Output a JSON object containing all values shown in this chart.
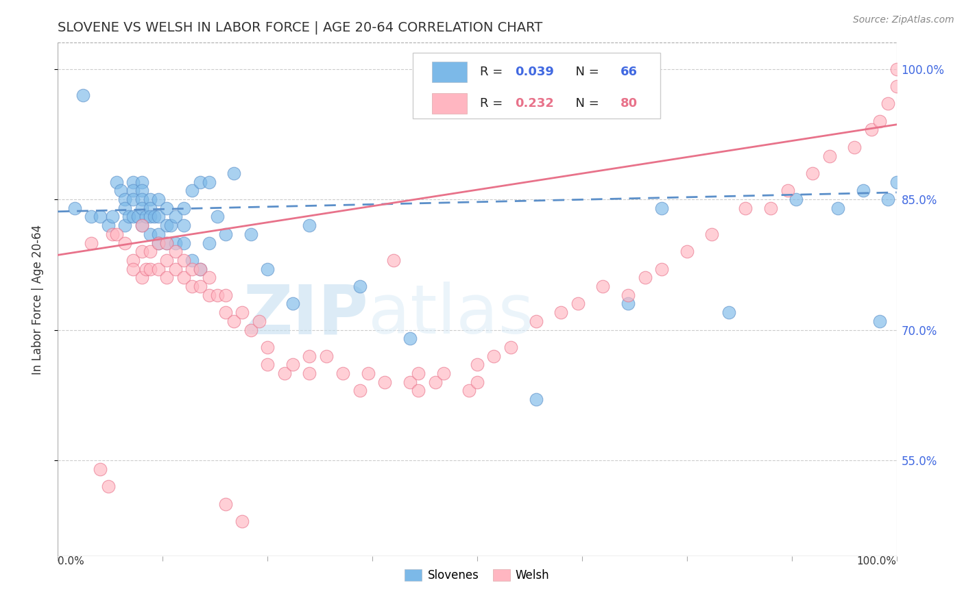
{
  "title": "SLOVENE VS WELSH IN LABOR FORCE | AGE 20-64 CORRELATION CHART",
  "source_text": "Source: ZipAtlas.com",
  "ylabel": "In Labor Force | Age 20-64",
  "xlim": [
    0.0,
    1.0
  ],
  "ylim": [
    0.44,
    1.03
  ],
  "yticks": [
    0.55,
    0.7,
    0.85,
    1.0
  ],
  "ytick_labels": [
    "55.0%",
    "70.0%",
    "85.0%",
    "100.0%"
  ],
  "color_slovene": "#7CB9E8",
  "color_welsh": "#FFB6C1",
  "color_slovene_line": "#5B8FC9",
  "color_welsh_line": "#E8728A",
  "watermark_zip": "ZIP",
  "watermark_atlas": "atlas",
  "background_color": "#ffffff",
  "slovene_line_start_y": 0.836,
  "slovene_line_end_y": 0.858,
  "welsh_line_start_y": 0.786,
  "welsh_line_end_y": 0.936,
  "xtick_positions": [
    0.0,
    0.125,
    0.25,
    0.375,
    0.5,
    0.625,
    0.75,
    0.875,
    1.0
  ],
  "slovene_x": [
    0.02,
    0.03,
    0.04,
    0.05,
    0.06,
    0.065,
    0.07,
    0.075,
    0.08,
    0.08,
    0.08,
    0.085,
    0.09,
    0.09,
    0.09,
    0.09,
    0.095,
    0.1,
    0.1,
    0.1,
    0.1,
    0.1,
    0.105,
    0.11,
    0.11,
    0.11,
    0.11,
    0.115,
    0.12,
    0.12,
    0.12,
    0.12,
    0.13,
    0.13,
    0.13,
    0.135,
    0.14,
    0.14,
    0.15,
    0.15,
    0.15,
    0.16,
    0.16,
    0.17,
    0.17,
    0.18,
    0.18,
    0.19,
    0.2,
    0.21,
    0.23,
    0.25,
    0.28,
    0.3,
    0.36,
    0.42,
    0.57,
    0.68,
    0.72,
    0.8,
    0.88,
    0.93,
    0.96,
    0.98,
    0.99,
    1.0
  ],
  "slovene_y": [
    0.84,
    0.97,
    0.83,
    0.83,
    0.82,
    0.83,
    0.87,
    0.86,
    0.85,
    0.84,
    0.82,
    0.83,
    0.87,
    0.86,
    0.85,
    0.83,
    0.83,
    0.87,
    0.86,
    0.85,
    0.84,
    0.82,
    0.83,
    0.85,
    0.84,
    0.83,
    0.81,
    0.83,
    0.85,
    0.83,
    0.81,
    0.8,
    0.84,
    0.82,
    0.8,
    0.82,
    0.83,
    0.8,
    0.84,
    0.82,
    0.8,
    0.86,
    0.78,
    0.87,
    0.77,
    0.8,
    0.87,
    0.83,
    0.81,
    0.88,
    0.81,
    0.77,
    0.73,
    0.82,
    0.75,
    0.69,
    0.62,
    0.73,
    0.84,
    0.72,
    0.85,
    0.84,
    0.86,
    0.71,
    0.85,
    0.87
  ],
  "welsh_x": [
    0.04,
    0.05,
    0.06,
    0.065,
    0.07,
    0.08,
    0.09,
    0.09,
    0.1,
    0.1,
    0.1,
    0.105,
    0.11,
    0.11,
    0.12,
    0.12,
    0.13,
    0.13,
    0.13,
    0.14,
    0.14,
    0.15,
    0.15,
    0.16,
    0.16,
    0.17,
    0.17,
    0.18,
    0.18,
    0.19,
    0.2,
    0.2,
    0.21,
    0.22,
    0.23,
    0.24,
    0.25,
    0.25,
    0.27,
    0.28,
    0.3,
    0.3,
    0.32,
    0.34,
    0.36,
    0.37,
    0.39,
    0.4,
    0.42,
    0.43,
    0.43,
    0.45,
    0.46,
    0.49,
    0.5,
    0.5,
    0.52,
    0.54,
    0.57,
    0.6,
    0.62,
    0.65,
    0.68,
    0.7,
    0.72,
    0.75,
    0.78,
    0.82,
    0.85,
    0.87,
    0.9,
    0.92,
    0.95,
    0.97,
    0.98,
    0.99,
    1.0,
    1.0,
    0.2,
    0.22
  ],
  "welsh_y": [
    0.8,
    0.54,
    0.52,
    0.81,
    0.81,
    0.8,
    0.78,
    0.77,
    0.82,
    0.79,
    0.76,
    0.77,
    0.79,
    0.77,
    0.8,
    0.77,
    0.8,
    0.78,
    0.76,
    0.79,
    0.77,
    0.78,
    0.76,
    0.77,
    0.75,
    0.77,
    0.75,
    0.76,
    0.74,
    0.74,
    0.74,
    0.72,
    0.71,
    0.72,
    0.7,
    0.71,
    0.68,
    0.66,
    0.65,
    0.66,
    0.67,
    0.65,
    0.67,
    0.65,
    0.63,
    0.65,
    0.64,
    0.78,
    0.64,
    0.65,
    0.63,
    0.64,
    0.65,
    0.63,
    0.64,
    0.66,
    0.67,
    0.68,
    0.71,
    0.72,
    0.73,
    0.75,
    0.74,
    0.76,
    0.77,
    0.79,
    0.81,
    0.84,
    0.84,
    0.86,
    0.88,
    0.9,
    0.91,
    0.93,
    0.94,
    0.96,
    0.98,
    1.0,
    0.5,
    0.48
  ]
}
